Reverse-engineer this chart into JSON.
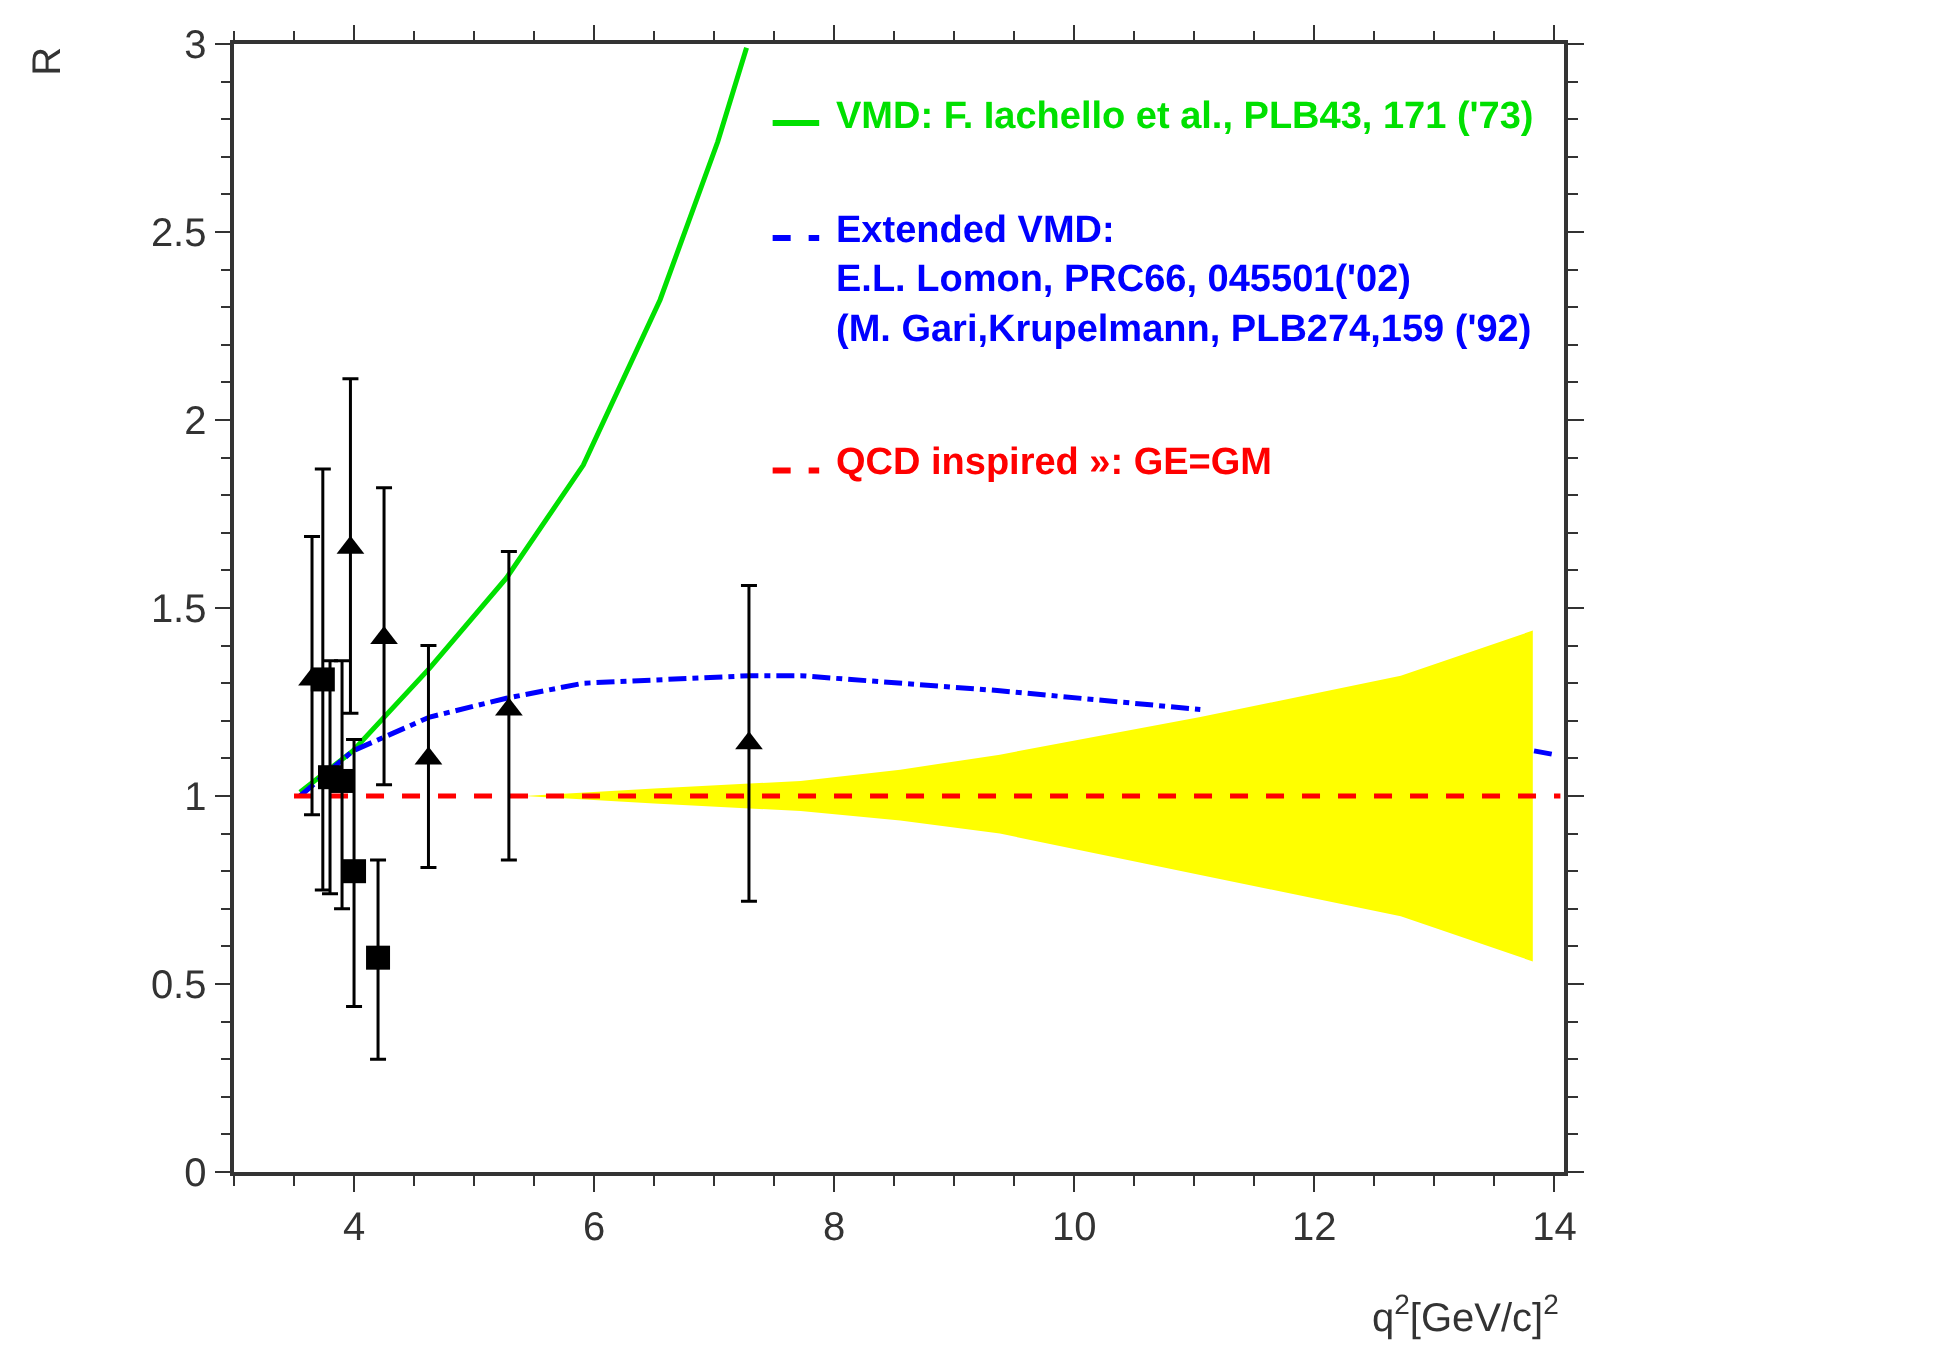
{
  "chart_data": {
    "type": "scatter",
    "xlabel": "q$^{2}$[GeV/c]$^{2}$",
    "ylabel": "R",
    "xlim": [
      3,
      14.08
    ],
    "ylim": [
      0,
      3
    ],
    "xticks": [
      4,
      6,
      8,
      10,
      12,
      14
    ],
    "yticks": [
      0,
      0.5,
      1,
      1.5,
      2,
      2.5,
      3
    ],
    "legend": "top right",
    "series": [
      {
        "type": "line",
        "name": "VMD: F. Iachello et al., PLB43, 171 ('73)",
        "color": "#00e000",
        "line_style": "solid",
        "marker": "none",
        "x": [
          3.55,
          3.99,
          4.63,
          5.27,
          5.91,
          6.55,
          7.03,
          7.27
        ],
        "values": [
          1.01,
          1.12,
          1.34,
          1.58,
          1.88,
          2.32,
          2.74,
          2.99
        ]
      },
      {
        "type": "line",
        "name": "Extended VMD:\nE.L. Lomon, PRC66, 045501('02)\n(M. Gari,Krupelmann, PLB274,159 ('92)",
        "color": "#0000ff",
        "line_style": "dashdot",
        "marker": "none",
        "x": [
          3.55,
          3.99,
          4.63,
          5.27,
          5.91,
          7.3,
          7.72,
          9.38,
          11.05,
          11.6,
          12.5,
          13.83,
          14.0
        ],
        "values": [
          1.0,
          1.12,
          1.21,
          1.26,
          1.3,
          1.32,
          1.32,
          1.28,
          1.23,
          null,
          null,
          1.12,
          1.11
        ]
      },
      {
        "type": "line",
        "name": "QCD inspired »: GE=GM",
        "color": "#ff0000",
        "line_style": "dashed",
        "marker": "none",
        "x": [
          3.5,
          5.42,
          6.5,
          7.72,
          8.55,
          9.38,
          11.05,
          12.72,
          13.82,
          14.05
        ],
        "values": [
          1,
          1,
          1,
          1,
          1,
          1,
          1,
          1,
          1,
          1
        ],
        "lower": [
          null,
          1.0,
          0.98,
          0.96,
          0.935,
          0.9,
          0.79,
          0.68,
          0.56,
          null
        ],
        "upper": [
          null,
          1.0,
          1.02,
          1.04,
          1.07,
          1.11,
          1.21,
          1.32,
          1.44,
          null
        ]
      },
      {
        "color": "#000000",
        "marker": "square",
        "x": [
          3.74,
          3.8,
          3.9,
          4.0,
          4.2
        ],
        "values": [
          1.31,
          1.05,
          1.04,
          0.8,
          0.57
        ],
        "errors": [
          [
            0.75,
            1.87
          ],
          [
            0.74,
            1.36
          ],
          [
            0.7,
            1.36
          ],
          [
            0.44,
            1.15
          ],
          [
            0.3,
            0.83
          ]
        ]
      },
      {
        "color": "#000000",
        "marker": "triangle",
        "x": [
          3.65,
          3.97,
          4.25,
          4.62,
          5.29,
          7.29
        ],
        "values": [
          1.31,
          1.66,
          1.42,
          1.1,
          1.23,
          1.14
        ],
        "errors": [
          [
            0.95,
            1.69
          ],
          [
            1.22,
            2.11
          ],
          [
            1.03,
            1.82
          ],
          [
            0.81,
            1.4
          ],
          [
            0.83,
            1.65
          ],
          [
            0.72,
            1.56
          ]
        ]
      }
    ]
  }
}
